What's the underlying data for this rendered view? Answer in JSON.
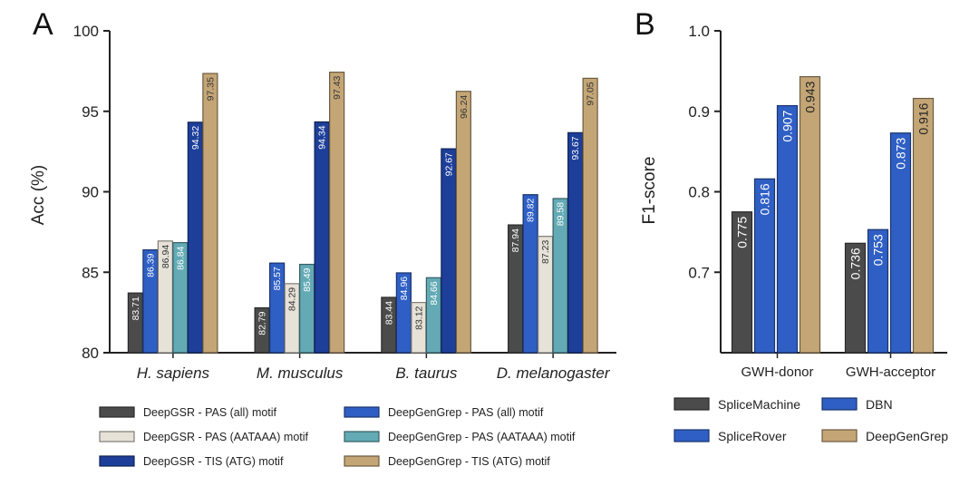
{
  "colors": {
    "dark_gray": "#4b4b4b",
    "light_gray": "#e6e2d8",
    "blue": "#2f5fc4",
    "navy": "#1d3f9a",
    "teal": "#63aab5",
    "tan": "#c4a676",
    "axis": "#222222"
  },
  "chart_data": [
    {
      "panel": "A",
      "type": "bar",
      "ylabel": "Acc (%)",
      "ylim": [
        80,
        100
      ],
      "yticks": [
        "80",
        "85",
        "90",
        "95",
        "100"
      ],
      "categories": [
        "H. sapiens",
        "M. musculus",
        "B. taurus",
        "D. melanogaster"
      ],
      "series": [
        {
          "name": "DeepGSR - PAS (all) motif",
          "color": "#4b4b4b",
          "values": [
            83.71,
            82.79,
            83.44,
            87.94
          ],
          "labels": [
            "83.71",
            "82.79",
            "83.44",
            "87.94"
          ]
        },
        {
          "name": "DeepGenGrep - PAS (all) motif",
          "color": "#2f5fc4",
          "values": [
            86.39,
            85.57,
            84.96,
            89.82
          ],
          "labels": [
            "86.39",
            "85.57",
            "84.96",
            "89.82"
          ]
        },
        {
          "name": "DeepGSR - PAS (AATAAA) motif",
          "color": "#e6e2d8",
          "values": [
            86.94,
            84.29,
            83.12,
            87.23
          ],
          "labels": [
            "86.94",
            "84.29",
            "83.12",
            "87.23"
          ]
        },
        {
          "name": "DeepGenGrep - PAS (AATAAA) motif",
          "color": "#63aab5",
          "values": [
            86.84,
            85.49,
            84.66,
            89.58
          ],
          "labels": [
            "86.84",
            "85.49",
            "84.66",
            "89.58"
          ]
        },
        {
          "name": "DeepGSR - TIS (ATG) motif",
          "color": "#1d3f9a",
          "values": [
            94.32,
            94.34,
            92.67,
            93.67
          ],
          "labels": [
            "94.32",
            "94.34",
            "92.67",
            "93.67"
          ]
        },
        {
          "name": "DeepGenGrep - TIS (ATG) motif",
          "color": "#c4a676",
          "values": [
            97.35,
            97.43,
            96.24,
            97.05
          ],
          "labels": [
            "97.35",
            "97.43",
            "96.24",
            "97.05"
          ]
        }
      ],
      "legend": {
        "left": [
          "DeepGSR - PAS (all) motif",
          "DeepGSR - PAS (AATAAA) motif",
          "DeepGSR - TIS (ATG) motif"
        ],
        "right": [
          "DeepGenGrep - PAS (all) motif",
          "DeepGenGrep - PAS (AATAAA) motif",
          "DeepGenGrep - TIS (ATG) motif"
        ]
      }
    },
    {
      "panel": "B",
      "type": "bar",
      "ylabel": "F1-score",
      "ylim": [
        0.6,
        1.0
      ],
      "yticks": [
        "0.7",
        "0.8",
        "0.9",
        "1.0"
      ],
      "categories": [
        "GWH-donor",
        "GWH-acceptor"
      ],
      "series": [
        {
          "name": "SpliceMachine",
          "color": "#4b4b4b",
          "values": [
            0.775,
            0.736
          ],
          "labels": [
            "0.775",
            "0.736"
          ]
        },
        {
          "name": "SpliceRover",
          "color": "#2f5fc4",
          "values": [
            0.816,
            0.753
          ],
          "labels": [
            "0.816",
            "0.753"
          ]
        },
        {
          "name": "DBN",
          "color": "#2f5fc4",
          "values": [
            0.907,
            0.873
          ],
          "labels": [
            "0.907",
            "0.873"
          ]
        },
        {
          "name": "DeepGenGrep",
          "color": "#c4a676",
          "values": [
            0.943,
            0.916
          ],
          "labels": [
            "0.943",
            "0.916"
          ]
        }
      ],
      "legend": {
        "left": [
          "SpliceMachine",
          "SpliceRover"
        ],
        "right": [
          "DBN",
          "DeepGenGrep"
        ]
      }
    }
  ]
}
